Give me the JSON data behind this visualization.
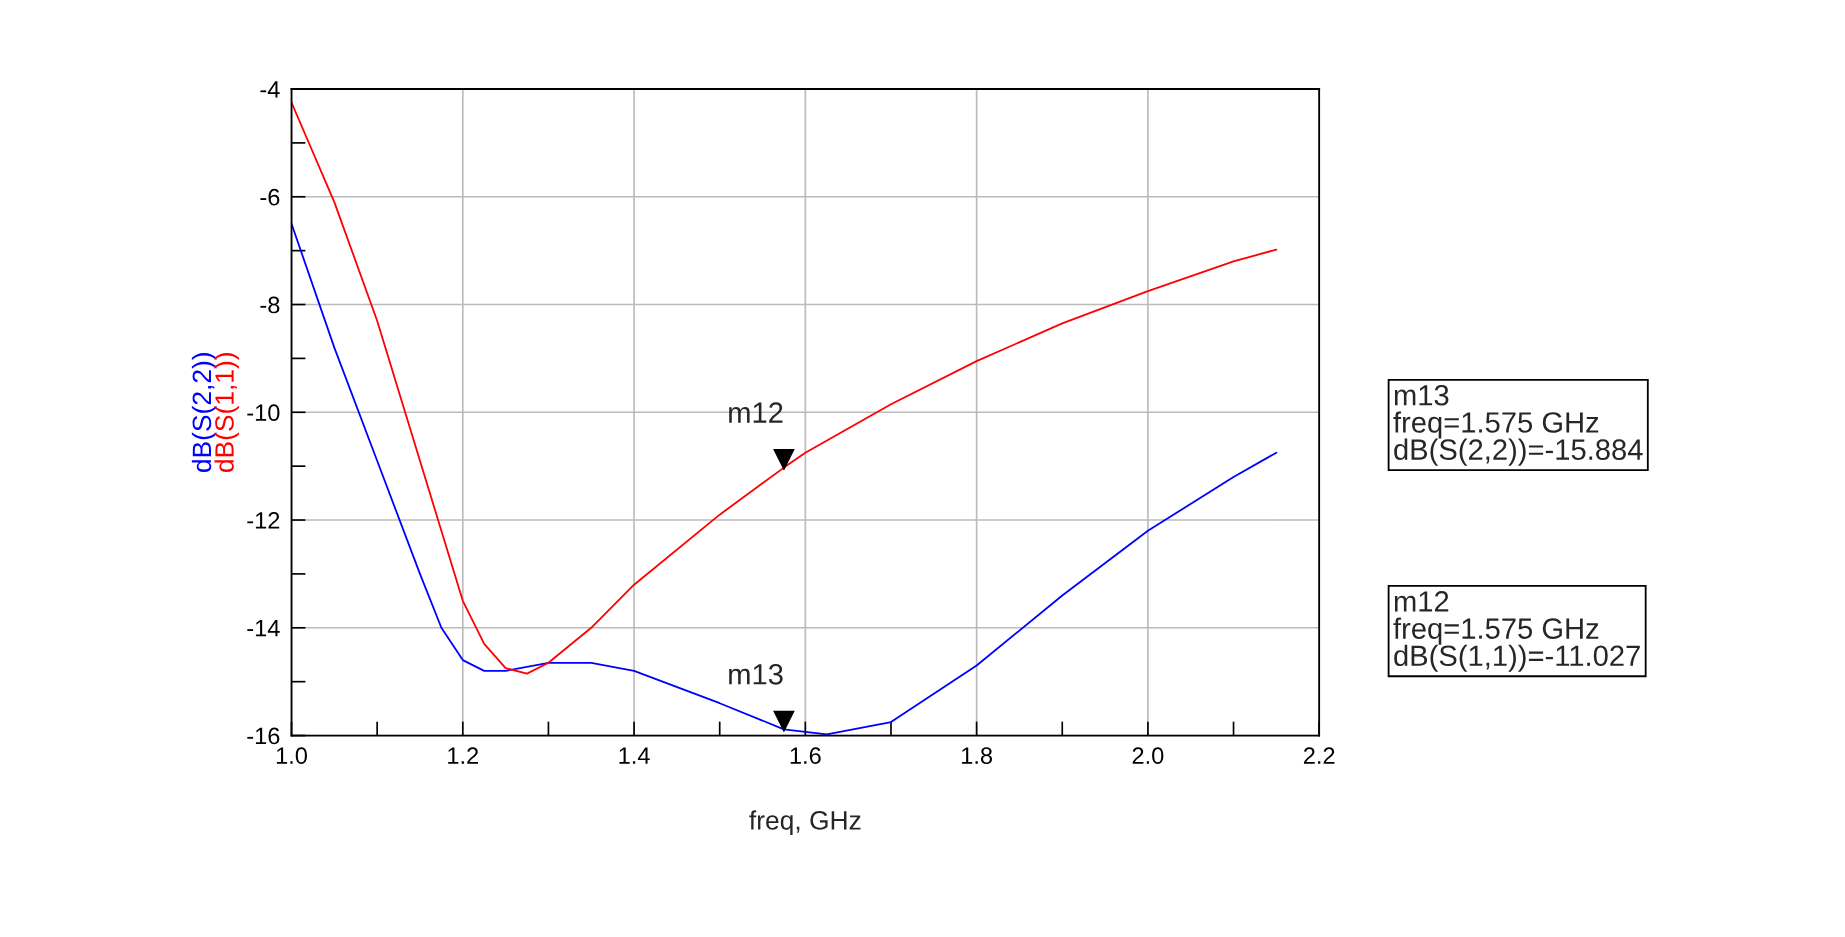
{
  "chart_data": {
    "type": "line",
    "xlabel": "freq, GHz",
    "xlim": [
      1.0,
      2.2
    ],
    "ylim": [
      -16,
      -4
    ],
    "xticks": [
      {
        "value": 1.0,
        "label": "1.0"
      },
      {
        "value": 1.1,
        "label": null
      },
      1.2,
      {
        "value": 1.3,
        "label": null
      },
      1.4,
      {
        "value": 1.5,
        "label": null
      },
      1.6,
      {
        "value": 1.7,
        "label": null
      },
      1.8,
      {
        "value": 1.9,
        "label": null
      },
      {
        "value": 2.0,
        "label": "2.0"
      },
      {
        "value": 2.1,
        "label": null
      },
      2.2
    ],
    "yticks": [
      -16,
      {
        "value": -15,
        "label": null
      },
      -14,
      {
        "value": -13,
        "label": null
      },
      -12,
      {
        "value": -11,
        "label": null
      },
      -10,
      {
        "value": -9,
        "label": null
      },
      -8,
      {
        "value": -7,
        "label": null
      },
      -6,
      {
        "value": -5,
        "label": null
      },
      -4
    ],
    "grid": true,
    "legend": false,
    "marker": "none",
    "line_style": "solid",
    "series": [
      {
        "name": "dB(S(2,2))",
        "color": "#0000ff",
        "x": [
          1.0,
          1.05,
          1.1,
          1.15,
          1.175,
          1.2,
          1.225,
          1.25,
          1.3,
          1.35,
          1.4,
          1.5,
          1.575,
          1.625,
          1.7,
          1.8,
          1.9,
          2.0,
          2.1,
          2.15
        ],
        "values": [
          -6.5,
          -8.8,
          -10.9,
          -13.0,
          -14.0,
          -14.6,
          -14.8,
          -14.8,
          -14.65,
          -14.65,
          -14.8,
          -15.4,
          -15.884,
          -15.98,
          -15.75,
          -14.7,
          -13.4,
          -12.2,
          -11.2,
          -10.75
        ]
      },
      {
        "name": "dB(S(1,1))",
        "color": "#ff0000",
        "x": [
          1.0,
          1.05,
          1.1,
          1.15,
          1.2,
          1.225,
          1.25,
          1.275,
          1.3,
          1.35,
          1.4,
          1.5,
          1.575,
          1.6,
          1.7,
          1.8,
          1.9,
          2.0,
          2.1,
          2.15
        ],
        "values": [
          -4.25,
          -6.1,
          -8.3,
          -10.9,
          -13.5,
          -14.3,
          -14.75,
          -14.85,
          -14.65,
          -14.0,
          -13.2,
          -11.9,
          -11.027,
          -10.75,
          -9.85,
          -9.05,
          -8.35,
          -7.75,
          -7.2,
          -6.98
        ]
      }
    ],
    "annotations": [
      {
        "text": "m12",
        "x": 1.575,
        "y": -11.027
      },
      {
        "text": "m13",
        "x": 1.575,
        "y": -15.884
      },
      "m13\nfreq=1.575 GHz\ndB(S(2,2))=-15.884",
      "m12\nfreq=1.575 GHz\ndB(S(1,1))=-11.027"
    ]
  }
}
